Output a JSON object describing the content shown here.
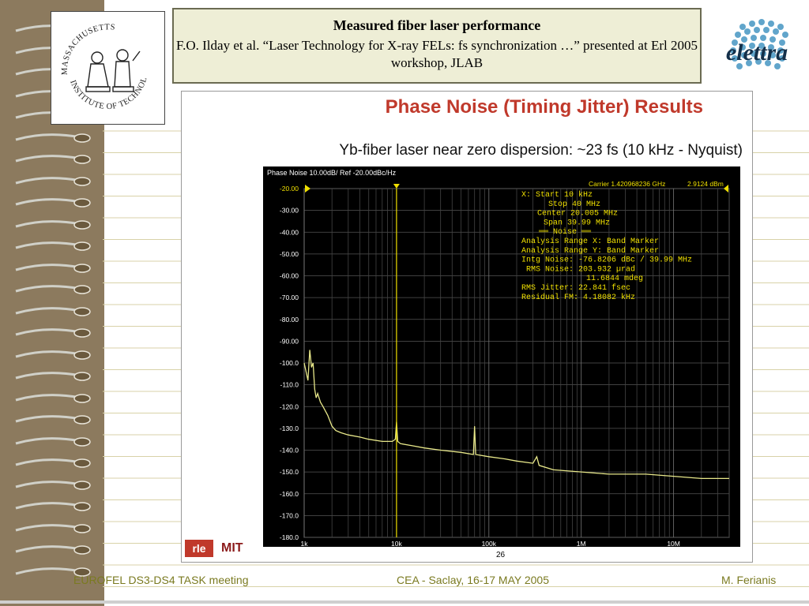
{
  "header": {
    "title": "Measured fiber laser performance",
    "citation": "F.O. Ilday et al. “Laser Technology for X-ray FELs: fs synchronization …” presented at Erl 2005 workshop, JLAB"
  },
  "logos": {
    "mit_seal_text": "MASSACHUSETTS INSTITUTE OF TECHNOLOGY",
    "elettra": "elettra",
    "rle": "rle",
    "mit": "MIT"
  },
  "slide": {
    "title": "Phase Noise (Timing Jitter) Results",
    "subtitle": "Yb-fiber laser near zero dispersion: ~23 fs (10 kHz - Nyquist)",
    "page_number": "26"
  },
  "chart_data": {
    "type": "line",
    "title": "Phase Noise 10.00dB/ Ref -20.00dBc/Hz",
    "carrier_label": "Carrier 1.420968236 GHz",
    "carrier_power": "2.9124 dBm",
    "x_scale": "log",
    "x_ticks": [
      "1k",
      "10k",
      "100k",
      "1M",
      "10M"
    ],
    "x_tick_values": [
      1000,
      10000,
      100000,
      1000000,
      10000000
    ],
    "xlim": [
      1000,
      40000000
    ],
    "y_ticks": [
      "-20.00",
      "-30.00",
      "-40.00",
      "-50.00",
      "-60.00",
      "-70.00",
      "-80.00",
      "-90.00",
      "-100.0",
      "-110.0",
      "-120.0",
      "-130.0",
      "-140.0",
      "-150.0",
      "-160.0",
      "-170.0",
      "-180.0"
    ],
    "ylim": [
      -180,
      -20
    ],
    "grid": true,
    "background": "#000000",
    "trace_color": "#e8e88a",
    "marker_color": "#f0e000",
    "marker_x": 10000,
    "readout": [
      "X: Start 10 kHz",
      "Stop 40 MHz",
      "Center 20.005 MHz",
      "Span 39.99 MHz",
      "══ Noise ══",
      "Analysis Range X: Band Marker",
      "Analysis Range Y: Band Marker",
      "Intg Noise: -76.8206 dBc / 39.99 MHz",
      "RMS Noise: 203.932 µrad",
      "11.6844 mdeg",
      "RMS Jitter: 22.841 fsec",
      "Residual FM: 4.18082 kHz"
    ],
    "series": [
      {
        "x": [
          1000,
          1100,
          1150,
          1200,
          1250,
          1300,
          1350,
          1400,
          1500,
          1600,
          1800,
          2000,
          2200,
          2500,
          3000,
          4000,
          5000,
          7000,
          9000,
          9700,
          10000,
          10300,
          11000,
          15000,
          20000,
          30000,
          50000,
          68000,
          70000,
          72000,
          100000,
          150000,
          200000,
          300000,
          330000,
          350000,
          500000,
          1000000,
          2000000,
          5000000,
          10000000,
          20000000,
          40000000
        ],
        "y": [
          -100,
          -108,
          -94,
          -102,
          -100,
          -112,
          -116,
          -114,
          -118,
          -120,
          -124,
          -129,
          -131,
          -132,
          -133,
          -134,
          -135,
          -136,
          -136,
          -135,
          -127,
          -136,
          -137,
          -138,
          -139,
          -140,
          -141,
          -142,
          -129,
          -142,
          -143,
          -144,
          -145,
          -146,
          -143,
          -147,
          -149,
          -150,
          -151,
          -151,
          -152,
          -153,
          -153
        ]
      }
    ]
  },
  "footer": {
    "left": "EUROFEL DS3-DS4 TASK meeting",
    "center": "CEA - Saclay, 16-17 MAY 2005",
    "right": "M. Ferianis"
  }
}
